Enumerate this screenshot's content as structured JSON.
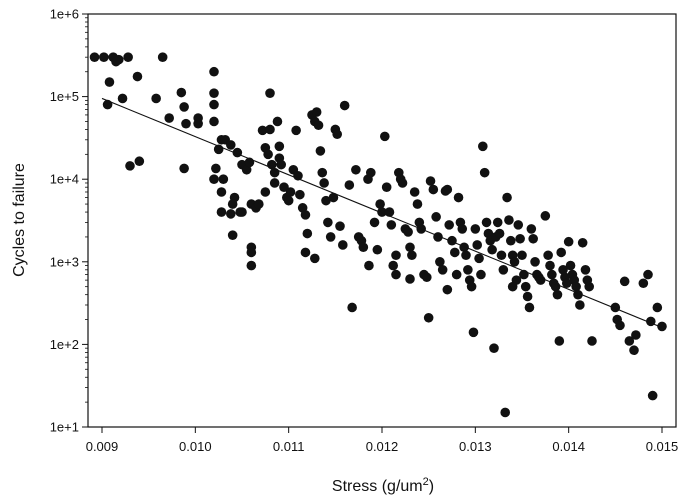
{
  "chart_data": {
    "type": "scatter",
    "xlabel": "Stress (g/um",
    "xlabel_sup": "2",
    "xlabel_end": ")",
    "ylabel": "Cycles to failure",
    "y_scale": "log",
    "xlim": [
      0.00885,
      0.01515
    ],
    "ylim": [
      10,
      1000000
    ],
    "x_ticks": [
      {
        "value": 0.009,
        "label": "0.009"
      },
      {
        "value": 0.01,
        "label": "0.010"
      },
      {
        "value": 0.011,
        "label": "0.011"
      },
      {
        "value": 0.012,
        "label": "0.012"
      },
      {
        "value": 0.013,
        "label": "0.013"
      },
      {
        "value": 0.014,
        "label": "0.014"
      },
      {
        "value": 0.015,
        "label": "0.015"
      }
    ],
    "y_ticks": [
      {
        "value": 10,
        "label": "1e+1"
      },
      {
        "value": 100,
        "label": "1e+2"
      },
      {
        "value": 1000,
        "label": "1e+3"
      },
      {
        "value": 10000,
        "label": "1e+4"
      },
      {
        "value": 100000,
        "label": "1e+5"
      },
      {
        "value": 1000000,
        "label": "1e+6"
      }
    ],
    "grid": false,
    "point_color": "#111111",
    "trend_line": {
      "start": [
        0.009,
        95000
      ],
      "end": [
        0.015,
        160
      ]
    },
    "points": [
      [
        0.00892,
        300000
      ],
      [
        0.00902,
        300000
      ],
      [
        0.00912,
        300000
      ],
      [
        0.00918,
        280000
      ],
      [
        0.00928,
        300000
      ],
      [
        0.00965,
        300000
      ],
      [
        0.00915,
        265000
      ],
      [
        0.00908,
        150000
      ],
      [
        0.00938,
        175000
      ],
      [
        0.00922,
        95000
      ],
      [
        0.00958,
        95000
      ],
      [
        0.00906,
        80000
      ],
      [
        0.00972,
        55000
      ],
      [
        0.00988,
        75000
      ],
      [
        0.00985,
        112000
      ],
      [
        0.0099,
        47000
      ],
      [
        0.01003,
        55000
      ],
      [
        0.01003,
        47000
      ],
      [
        0.0093,
        14500
      ],
      [
        0.0094,
        16500
      ],
      [
        0.00988,
        13500
      ],
      [
        0.0102,
        200000
      ],
      [
        0.0102,
        110000
      ],
      [
        0.0102,
        80000
      ],
      [
        0.0102,
        50000
      ],
      [
        0.01025,
        23000
      ],
      [
        0.01028,
        30000
      ],
      [
        0.01022,
        13500
      ],
      [
        0.0102,
        10000
      ],
      [
        0.0103,
        10000
      ],
      [
        0.01028,
        7000
      ],
      [
        0.01032,
        30000
      ],
      [
        0.01038,
        26000
      ],
      [
        0.01045,
        21000
      ],
      [
        0.0105,
        15000
      ],
      [
        0.01055,
        13000
      ],
      [
        0.01042,
        6000
      ],
      [
        0.0104,
        5000
      ],
      [
        0.01038,
        3800
      ],
      [
        0.01028,
        4000
      ],
      [
        0.0104,
        2100
      ],
      [
        0.01058,
        16000
      ],
      [
        0.01048,
        4000
      ],
      [
        0.0105,
        4000
      ],
      [
        0.0106,
        5000
      ],
      [
        0.0106,
        1500
      ],
      [
        0.0106,
        1300
      ],
      [
        0.0106,
        900
      ],
      [
        0.01065,
        4500
      ],
      [
        0.01068,
        5000
      ],
      [
        0.01072,
        39000
      ],
      [
        0.01075,
        24000
      ],
      [
        0.0108,
        110000
      ],
      [
        0.0108,
        40000
      ],
      [
        0.01078,
        20000
      ],
      [
        0.01082,
        15000
      ],
      [
        0.01085,
        12000
      ],
      [
        0.01088,
        50000
      ],
      [
        0.0109,
        25000
      ],
      [
        0.0109,
        18000
      ],
      [
        0.01092,
        15000
      ],
      [
        0.01095,
        8000
      ],
      [
        0.01098,
        6000
      ],
      [
        0.011,
        5500
      ],
      [
        0.01102,
        7000
      ],
      [
        0.01105,
        13000
      ],
      [
        0.01108,
        39000
      ],
      [
        0.0111,
        11000
      ],
      [
        0.01112,
        6500
      ],
      [
        0.01115,
        4500
      ],
      [
        0.01118,
        3700
      ],
      [
        0.0112,
        2200
      ],
      [
        0.01085,
        9000
      ],
      [
        0.01075,
        7000
      ],
      [
        0.01125,
        60000
      ],
      [
        0.01128,
        50000
      ],
      [
        0.0113,
        65000
      ],
      [
        0.01132,
        45000
      ],
      [
        0.01134,
        22000
      ],
      [
        0.01136,
        12000
      ],
      [
        0.01138,
        9000
      ],
      [
        0.0114,
        5500
      ],
      [
        0.01142,
        3000
      ],
      [
        0.01145,
        2000
      ],
      [
        0.01148,
        6000
      ],
      [
        0.0115,
        40000
      ],
      [
        0.01152,
        35000
      ],
      [
        0.01155,
        2700
      ],
      [
        0.01158,
        1600
      ],
      [
        0.01128,
        1100
      ],
      [
        0.01118,
        1300
      ],
      [
        0.0116,
        78000
      ],
      [
        0.01165,
        8500
      ],
      [
        0.01168,
        280
      ],
      [
        0.01172,
        13000
      ],
      [
        0.01175,
        2000
      ],
      [
        0.01178,
        1800
      ],
      [
        0.0118,
        1500
      ],
      [
        0.01185,
        10000
      ],
      [
        0.01188,
        12000
      ],
      [
        0.01192,
        3000
      ],
      [
        0.01195,
        1400
      ],
      [
        0.01198,
        5000
      ],
      [
        0.012,
        4000
      ],
      [
        0.01203,
        33000
      ],
      [
        0.01205,
        8000
      ],
      [
        0.01208,
        4000
      ],
      [
        0.0121,
        2800
      ],
      [
        0.01212,
        900
      ],
      [
        0.01215,
        700
      ],
      [
        0.01218,
        12000
      ],
      [
        0.0122,
        10000
      ],
      [
        0.01222,
        9000
      ],
      [
        0.01225,
        2500
      ],
      [
        0.01228,
        2300
      ],
      [
        0.0123,
        1500
      ],
      [
        0.01232,
        1200
      ],
      [
        0.01235,
        7000
      ],
      [
        0.01238,
        5000
      ],
      [
        0.0124,
        3000
      ],
      [
        0.01242,
        2500
      ],
      [
        0.01245,
        700
      ],
      [
        0.01248,
        650
      ],
      [
        0.0125,
        210
      ],
      [
        0.01252,
        9500
      ],
      [
        0.01255,
        7500
      ],
      [
        0.01258,
        3500
      ],
      [
        0.0126,
        2000
      ],
      [
        0.01262,
        1000
      ],
      [
        0.01265,
        800
      ],
      [
        0.01268,
        7200
      ],
      [
        0.0127,
        7500
      ],
      [
        0.01272,
        2800
      ],
      [
        0.01275,
        1800
      ],
      [
        0.01278,
        1300
      ],
      [
        0.0128,
        700
      ],
      [
        0.01282,
        6000
      ],
      [
        0.01284,
        3000
      ],
      [
        0.01286,
        2500
      ],
      [
        0.01288,
        1500
      ],
      [
        0.0129,
        1200
      ],
      [
        0.01292,
        800
      ],
      [
        0.01294,
        600
      ],
      [
        0.01296,
        500
      ],
      [
        0.01298,
        140
      ],
      [
        0.013,
        2500
      ],
      [
        0.01302,
        1600
      ],
      [
        0.01304,
        1100
      ],
      [
        0.01306,
        700
      ],
      [
        0.01308,
        25000
      ],
      [
        0.0131,
        12000
      ],
      [
        0.01312,
        3000
      ],
      [
        0.01314,
        2200
      ],
      [
        0.01316,
        1800
      ],
      [
        0.01318,
        1400
      ],
      [
        0.0132,
        90
      ],
      [
        0.01322,
        2000
      ],
      [
        0.01324,
        3000
      ],
      [
        0.01326,
        2200
      ],
      [
        0.01328,
        1200
      ],
      [
        0.0133,
        800
      ],
      [
        0.01332,
        15
      ],
      [
        0.01334,
        6000
      ],
      [
        0.01336,
        3200
      ],
      [
        0.01338,
        1800
      ],
      [
        0.0134,
        1200
      ],
      [
        0.01342,
        1000
      ],
      [
        0.01344,
        600
      ],
      [
        0.01346,
        2800
      ],
      [
        0.01348,
        1900
      ],
      [
        0.0135,
        1200
      ],
      [
        0.01352,
        700
      ],
      [
        0.01354,
        500
      ],
      [
        0.01356,
        380
      ],
      [
        0.01358,
        280
      ],
      [
        0.0136,
        2500
      ],
      [
        0.01362,
        1900
      ],
      [
        0.01364,
        1000
      ],
      [
        0.01366,
        700
      ],
      [
        0.01368,
        650
      ],
      [
        0.0137,
        600
      ],
      [
        0.01375,
        3600
      ],
      [
        0.01378,
        1200
      ],
      [
        0.0138,
        900
      ],
      [
        0.01382,
        700
      ],
      [
        0.01384,
        550
      ],
      [
        0.01386,
        500
      ],
      [
        0.01388,
        400
      ],
      [
        0.0139,
        110
      ],
      [
        0.01392,
        1300
      ],
      [
        0.01394,
        800
      ],
      [
        0.01396,
        650
      ],
      [
        0.01398,
        550
      ],
      [
        0.014,
        1750
      ],
      [
        0.01402,
        900
      ],
      [
        0.01404,
        700
      ],
      [
        0.01406,
        600
      ],
      [
        0.01408,
        500
      ],
      [
        0.0141,
        400
      ],
      [
        0.01412,
        300
      ],
      [
        0.01415,
        1700
      ],
      [
        0.01418,
        800
      ],
      [
        0.0142,
        600
      ],
      [
        0.01422,
        500
      ],
      [
        0.01425,
        110
      ],
      [
        0.0145,
        280
      ],
      [
        0.01452,
        200
      ],
      [
        0.01455,
        170
      ],
      [
        0.0146,
        580
      ],
      [
        0.01465,
        110
      ],
      [
        0.0147,
        85
      ],
      [
        0.01472,
        130
      ],
      [
        0.0148,
        550
      ],
      [
        0.01485,
        700
      ],
      [
        0.01488,
        190
      ],
      [
        0.0149,
        24
      ],
      [
        0.01495,
        280
      ],
      [
        0.015,
        165
      ],
      [
        0.0127,
        460
      ],
      [
        0.0123,
        620
      ],
      [
        0.01186,
        900
      ],
      [
        0.01215,
        1200
      ],
      [
        0.0134,
        500
      ]
    ]
  }
}
